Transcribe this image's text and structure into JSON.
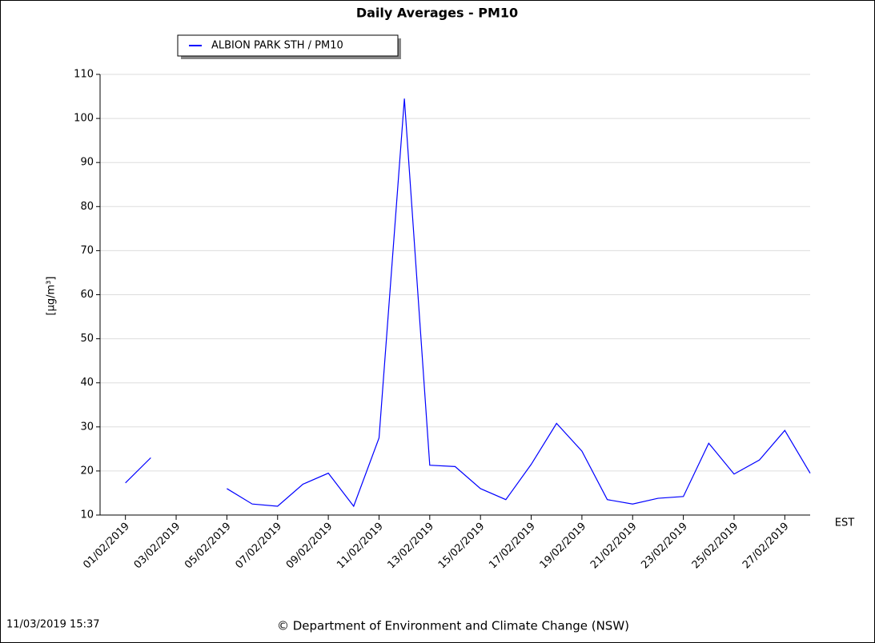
{
  "chart_data": {
    "type": "line",
    "title": "Daily Averages - PM10",
    "y_label": "[µg/m³]",
    "x_unit": "EST",
    "categories": [
      "01/02/2019",
      null,
      "03/02/2019",
      null,
      "05/02/2019",
      null,
      "07/02/2019",
      null,
      "09/02/2019",
      null,
      "11/02/2019",
      null,
      "13/02/2019",
      null,
      "15/02/2019",
      null,
      "17/02/2019",
      null,
      "19/02/2019",
      null,
      "21/02/2019",
      null,
      "23/02/2019",
      null,
      "25/02/2019",
      null,
      "27/02/2019",
      null
    ],
    "series": [
      {
        "name": "ALBION PARK STH / PM10",
        "color": "#0000ff",
        "values": [
          17.3,
          23,
          null,
          null,
          16,
          12.5,
          12,
          17,
          19.5,
          12,
          27.5,
          104.5,
          21.3,
          21,
          16,
          13.5,
          21.5,
          30.8,
          24.5,
          13.5,
          12.5,
          13.8,
          14.2,
          26.3,
          19.3,
          22.5,
          29.2,
          19.5
        ]
      }
    ],
    "ylim": [
      10,
      110
    ],
    "yticks": [
      10,
      20,
      30,
      40,
      50,
      60,
      70,
      80,
      90,
      100,
      110
    ],
    "grid": true,
    "timestamp": "11/03/2019 15:37",
    "footer": "© Department of Environment and Climate Change (NSW)"
  }
}
